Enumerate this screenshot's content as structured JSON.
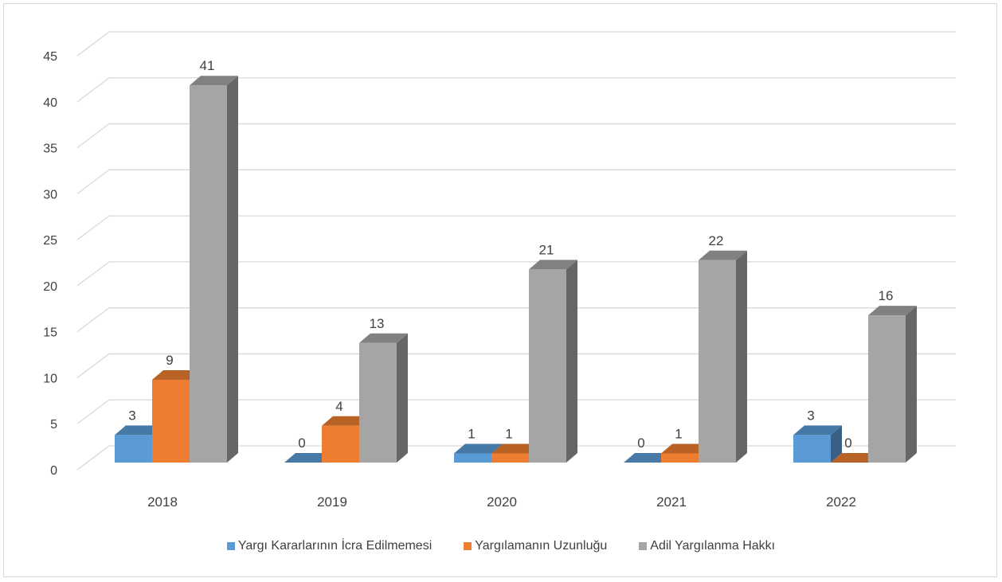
{
  "chart_data": {
    "type": "bar",
    "categories": [
      "2018",
      "2019",
      "2020",
      "2021",
      "2022"
    ],
    "series": [
      {
        "name": "Yargı Kararlarının İcra Edilmemesi",
        "values": [
          3,
          0,
          1,
          0,
          3
        ],
        "color": "#5b9bd5"
      },
      {
        "name": "Yargılamanın Uzunluğu",
        "values": [
          9,
          4,
          1,
          1,
          0
        ],
        "color": "#ed7d31"
      },
      {
        "name": "Adil Yargılanma Hakkı",
        "values": [
          41,
          13,
          21,
          22,
          16
        ],
        "color": "#a5a5a5"
      }
    ],
    "yticks": [
      "0",
      "5",
      "10",
      "15",
      "20",
      "25",
      "30",
      "35",
      "40",
      "45"
    ],
    "ylim": [
      0,
      45
    ],
    "grid": true,
    "legend_position": "bottom",
    "style": "3d-clustered-column"
  }
}
